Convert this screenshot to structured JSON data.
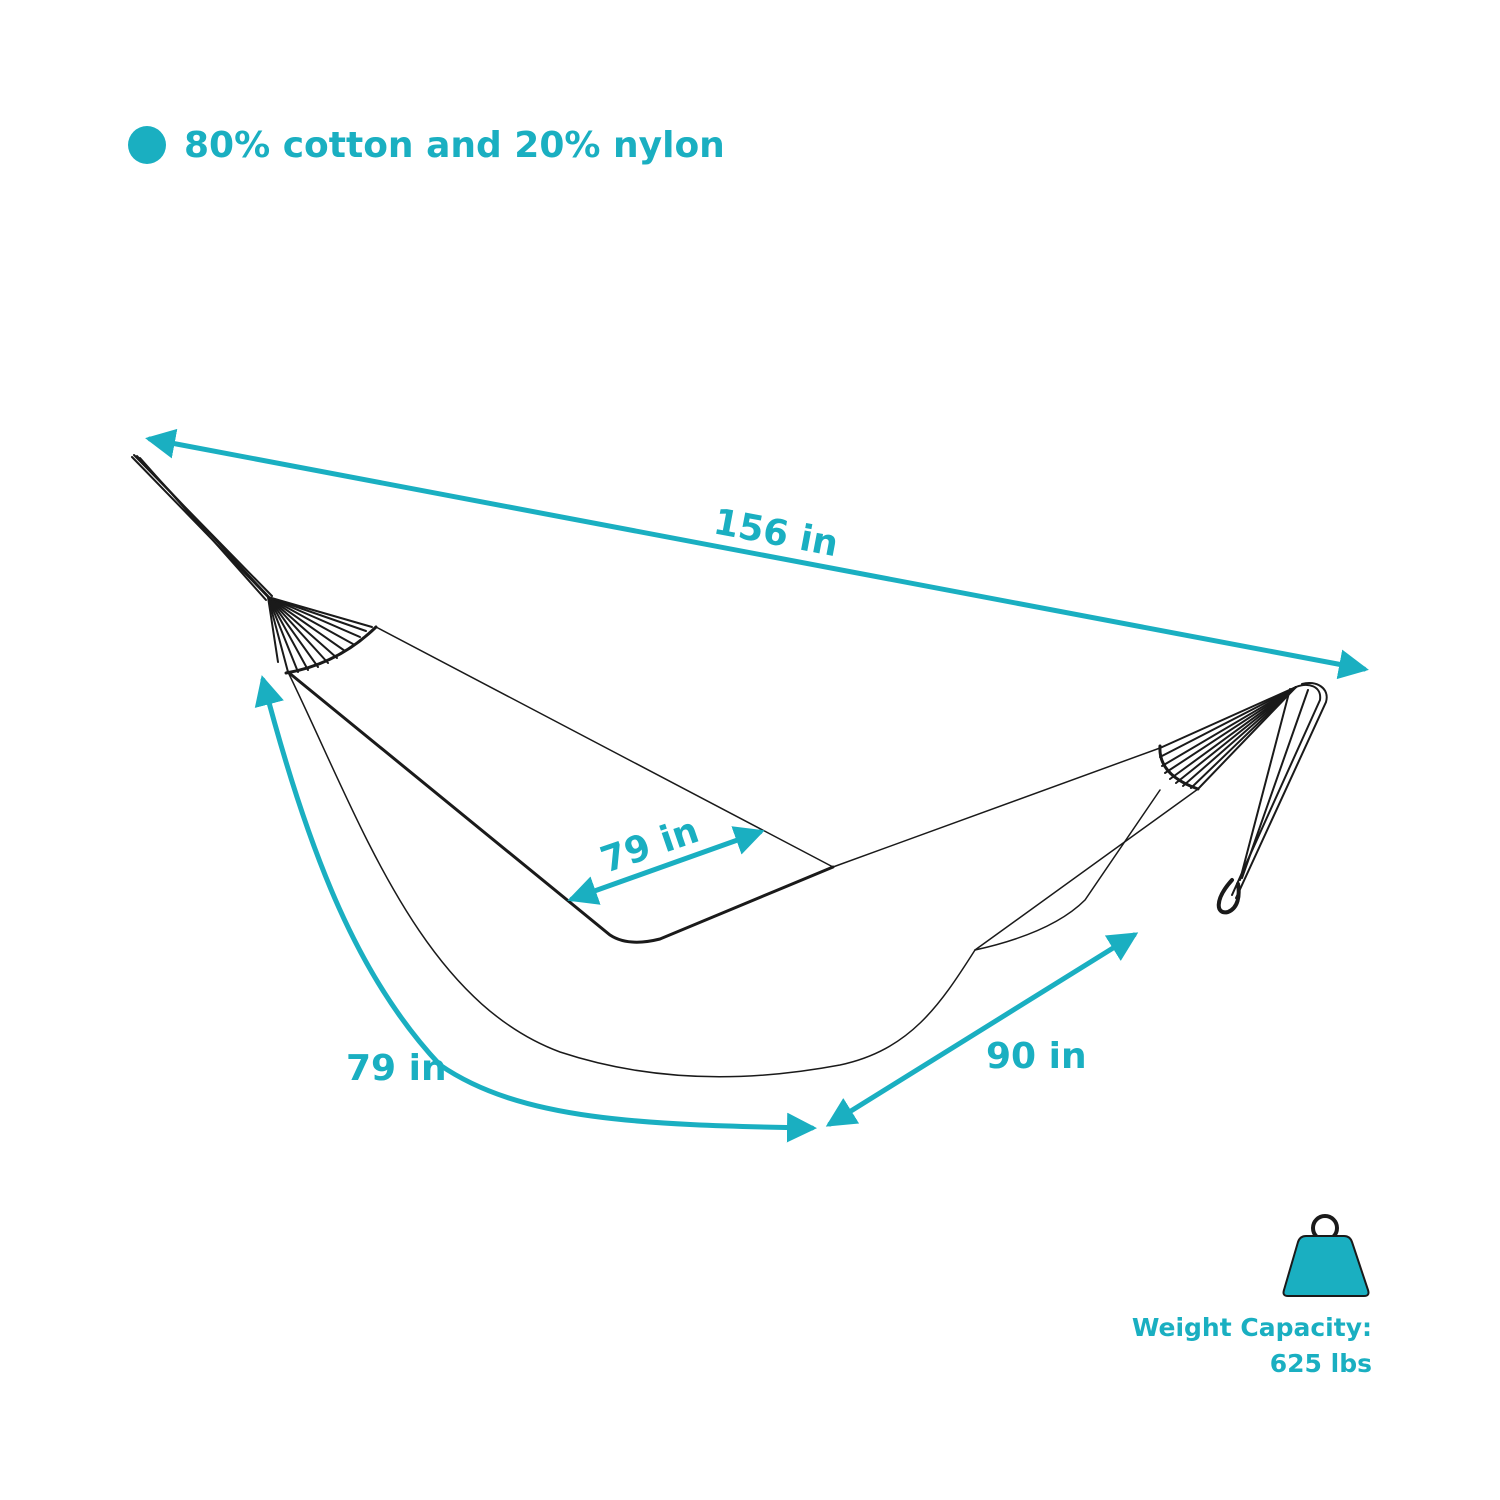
{
  "colors": {
    "accent": "#1aafc1",
    "line": "#1a1a1a",
    "background": "#ffffff"
  },
  "material": {
    "icon": "bullet-dot-icon",
    "text": "80% cotton and 20% nylon"
  },
  "dimensions": {
    "overall_length": "156 in",
    "bed_width": "79 in",
    "bed_side_length": "79 in",
    "bed_length": "90 in"
  },
  "capacity": {
    "icon": "weight-icon",
    "label": "Weight Capacity:",
    "value": "625 lbs"
  }
}
